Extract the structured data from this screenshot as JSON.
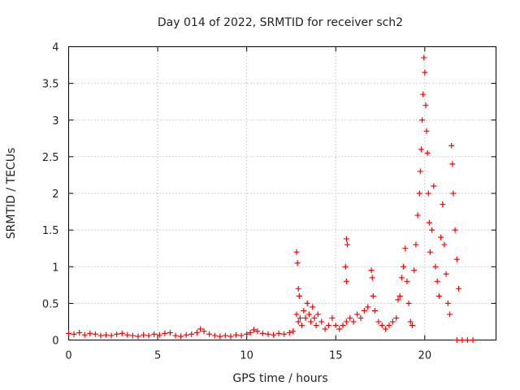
{
  "chart_data": {
    "type": "scatter",
    "title": "Day 014 of 2022, SRMTID for receiver sch2",
    "xlabel": "GPS time / hours",
    "ylabel": "SRMTID / TECUs",
    "xlim": [
      0,
      24
    ],
    "ylim": [
      0,
      4
    ],
    "xticks": [
      0,
      5,
      10,
      15,
      20
    ],
    "yticks": [
      0,
      0.5,
      1,
      1.5,
      2,
      2.5,
      3,
      3.5,
      4
    ],
    "xtick_labels": [
      "0",
      "5",
      "10",
      "15",
      "20"
    ],
    "ytick_labels": [
      "0",
      "0.5",
      "1",
      "1.5",
      "2",
      "2.5",
      "3",
      "3.5",
      "4"
    ],
    "grid": true,
    "marker": "+",
    "color": "#ff0000",
    "series": [
      {
        "name": "SRMTID",
        "points": [
          [
            0.0,
            0.09
          ],
          [
            0.3,
            0.08
          ],
          [
            0.6,
            0.1
          ],
          [
            0.9,
            0.07
          ],
          [
            1.2,
            0.09
          ],
          [
            1.5,
            0.08
          ],
          [
            1.8,
            0.06
          ],
          [
            2.1,
            0.07
          ],
          [
            2.4,
            0.06
          ],
          [
            2.7,
            0.08
          ],
          [
            3.0,
            0.09
          ],
          [
            3.3,
            0.07
          ],
          [
            3.6,
            0.06
          ],
          [
            3.9,
            0.05
          ],
          [
            4.2,
            0.07
          ],
          [
            4.5,
            0.06
          ],
          [
            4.8,
            0.08
          ],
          [
            5.1,
            0.07
          ],
          [
            5.4,
            0.09
          ],
          [
            5.7,
            0.1
          ],
          [
            6.0,
            0.06
          ],
          [
            6.3,
            0.05
          ],
          [
            6.6,
            0.07
          ],
          [
            6.9,
            0.08
          ],
          [
            7.2,
            0.1
          ],
          [
            7.4,
            0.15
          ],
          [
            7.6,
            0.12
          ],
          [
            7.9,
            0.08
          ],
          [
            8.2,
            0.06
          ],
          [
            8.5,
            0.05
          ],
          [
            8.8,
            0.06
          ],
          [
            9.1,
            0.05
          ],
          [
            9.4,
            0.07
          ],
          [
            9.7,
            0.06
          ],
          [
            10.0,
            0.08
          ],
          [
            10.2,
            0.1
          ],
          [
            10.4,
            0.14
          ],
          [
            10.6,
            0.12
          ],
          [
            10.9,
            0.09
          ],
          [
            11.2,
            0.08
          ],
          [
            11.5,
            0.07
          ],
          [
            11.8,
            0.09
          ],
          [
            12.1,
            0.08
          ],
          [
            12.4,
            0.1
          ],
          [
            12.6,
            0.12
          ],
          [
            12.8,
            1.2
          ],
          [
            12.85,
            1.05
          ],
          [
            12.9,
            0.7
          ],
          [
            12.95,
            0.6
          ],
          [
            12.8,
            0.35
          ],
          [
            12.9,
            0.25
          ],
          [
            13.0,
            0.3
          ],
          [
            13.1,
            0.2
          ],
          [
            13.2,
            0.4
          ],
          [
            13.3,
            0.3
          ],
          [
            13.4,
            0.5
          ],
          [
            13.5,
            0.35
          ],
          [
            13.6,
            0.25
          ],
          [
            13.7,
            0.45
          ],
          [
            13.8,
            0.3
          ],
          [
            13.9,
            0.2
          ],
          [
            14.0,
            0.35
          ],
          [
            14.2,
            0.25
          ],
          [
            14.4,
            0.15
          ],
          [
            14.6,
            0.2
          ],
          [
            14.8,
            0.3
          ],
          [
            15.0,
            0.2
          ],
          [
            15.2,
            0.15
          ],
          [
            15.4,
            0.2
          ],
          [
            15.6,
            0.25
          ],
          [
            15.6,
            1.38
          ],
          [
            15.65,
            1.3
          ],
          [
            15.55,
            1.0
          ],
          [
            15.6,
            0.8
          ],
          [
            15.8,
            0.3
          ],
          [
            16.0,
            0.25
          ],
          [
            16.2,
            0.35
          ],
          [
            16.4,
            0.3
          ],
          [
            16.6,
            0.4
          ],
          [
            16.8,
            0.45
          ],
          [
            17.0,
            0.95
          ],
          [
            17.05,
            0.85
          ],
          [
            17.1,
            0.6
          ],
          [
            17.2,
            0.4
          ],
          [
            17.4,
            0.25
          ],
          [
            17.6,
            0.2
          ],
          [
            17.8,
            0.15
          ],
          [
            18.0,
            0.2
          ],
          [
            18.2,
            0.25
          ],
          [
            18.4,
            0.3
          ],
          [
            18.5,
            0.55
          ],
          [
            18.6,
            0.6
          ],
          [
            18.7,
            0.85
          ],
          [
            18.8,
            1.0
          ],
          [
            18.9,
            1.25
          ],
          [
            19.0,
            0.8
          ],
          [
            19.1,
            0.5
          ],
          [
            19.2,
            0.25
          ],
          [
            19.3,
            0.2
          ],
          [
            19.4,
            0.95
          ],
          [
            19.5,
            1.3
          ],
          [
            19.6,
            1.7
          ],
          [
            19.7,
            2.0
          ],
          [
            19.75,
            2.3
          ],
          [
            19.8,
            2.6
          ],
          [
            19.85,
            3.0
          ],
          [
            19.9,
            3.35
          ],
          [
            19.95,
            3.85
          ],
          [
            20.0,
            3.65
          ],
          [
            20.05,
            3.2
          ],
          [
            20.1,
            2.85
          ],
          [
            20.15,
            2.55
          ],
          [
            20.2,
            2.0
          ],
          [
            20.25,
            1.6
          ],
          [
            20.3,
            1.2
          ],
          [
            20.4,
            1.5
          ],
          [
            20.5,
            2.1
          ],
          [
            20.6,
            1.0
          ],
          [
            20.7,
            0.8
          ],
          [
            20.8,
            0.6
          ],
          [
            20.9,
            1.4
          ],
          [
            21.0,
            1.85
          ],
          [
            21.1,
            1.3
          ],
          [
            21.2,
            0.9
          ],
          [
            21.3,
            0.5
          ],
          [
            21.4,
            0.35
          ],
          [
            21.5,
            2.65
          ],
          [
            21.55,
            2.4
          ],
          [
            21.6,
            2.0
          ],
          [
            21.7,
            1.5
          ],
          [
            21.8,
            1.1
          ],
          [
            21.9,
            0.7
          ],
          [
            21.8,
            0.0
          ],
          [
            22.1,
            0.0
          ],
          [
            22.4,
            0.0
          ],
          [
            22.7,
            0.0
          ]
        ]
      }
    ]
  }
}
